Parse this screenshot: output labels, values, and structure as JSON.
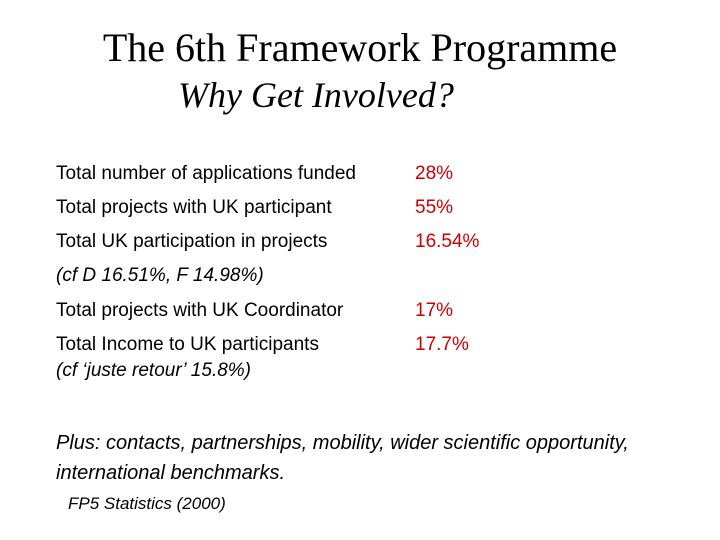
{
  "slide": {
    "title": "The 6th Framework Programme",
    "subtitle": "Why Get Involved?"
  },
  "stats": [
    {
      "label": "Total number of applications funded",
      "value": "28%"
    },
    {
      "label": "Total projects with UK participant",
      "value": "55%"
    },
    {
      "label": "Total UK participation in projects",
      "value": "16.54%"
    },
    {
      "label": "Total projects with UK Coordinator",
      "value": "17%"
    },
    {
      "label": "Total Income to UK participants",
      "value": "17.7%"
    }
  ],
  "notes": {
    "participation_compare": "(cf D 16.51%, F 14.98%)",
    "income_compare": "(cf ‘juste retour’ 15.8%)"
  },
  "plus_text": "Plus: contacts, partnerships, mobility, wider scientific opportunity, international benchmarks.",
  "source": "FP5 Statistics (2000)",
  "colors": {
    "value": "#cc0000",
    "text": "#000000",
    "background": "#ffffff"
  }
}
